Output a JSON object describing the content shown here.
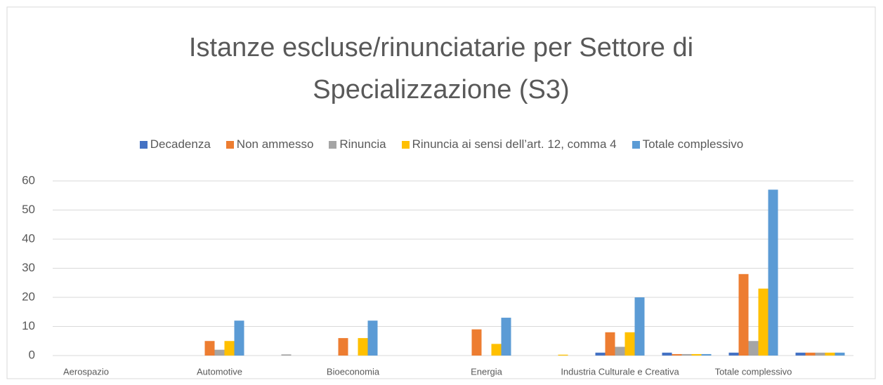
{
  "chart_data": {
    "type": "bar",
    "title": "Istanze escluse/rinunciatarie per Settore di Specializzazione (S3)",
    "categories": [
      "Aerospazio",
      null,
      "Automotive",
      null,
      "Bioeconomia",
      null,
      "Energia",
      null,
      "Industria Culturale e Creativa",
      null,
      "Totale complessivo",
      null
    ],
    "series": [
      {
        "name": "Decadenza",
        "color": "#4472c4",
        "values": [
          0,
          0,
          0,
          0,
          0,
          0,
          0,
          0,
          1,
          1,
          1,
          1
        ]
      },
      {
        "name": "Non ammesso",
        "color": "#ed7d31",
        "values": [
          0,
          0,
          5,
          0,
          6,
          0,
          9,
          0,
          8,
          0.5,
          28,
          1
        ]
      },
      {
        "name": "Rinuncia",
        "color": "#a5a5a5",
        "values": [
          0,
          0,
          2,
          0.4,
          0,
          0,
          0,
          0,
          3,
          0.5,
          5,
          1
        ]
      },
      {
        "name": "Rinuncia ai sensi dell’art. 12, comma 4",
        "color": "#ffc000",
        "values": [
          0,
          0,
          5,
          0,
          6,
          0,
          4,
          0.3,
          8,
          0.5,
          23,
          1
        ]
      },
      {
        "name": "Totale complessivo",
        "color": "#5b9bd5",
        "values": [
          0,
          0,
          12,
          0,
          12,
          0,
          13,
          0,
          20,
          0.5,
          57,
          1
        ]
      }
    ],
    "ylim": [
      0,
      60
    ],
    "yticks": [
      0,
      10,
      20,
      30,
      40,
      50,
      60
    ],
    "grid": true,
    "legend": "top"
  }
}
